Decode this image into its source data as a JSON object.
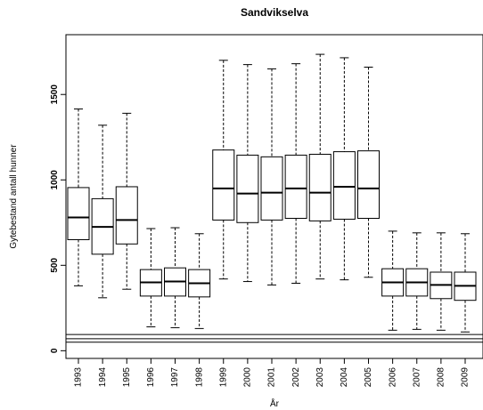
{
  "chart_data": {
    "type": "boxplot",
    "title": "Sandvikselva",
    "xlabel": "År",
    "ylabel": "Gytebestand antall hunner",
    "ylim": [
      -45,
      1850
    ],
    "yticks": [
      0,
      500,
      1000,
      1500
    ],
    "reference_lines": [
      50,
      70,
      95
    ],
    "grid": false,
    "categories": [
      "1993",
      "1994",
      "1995",
      "1996",
      "1997",
      "1998",
      "1999",
      "2000",
      "2001",
      "2002",
      "2003",
      "2004",
      "2005",
      "2006",
      "2007",
      "2008",
      "2009"
    ],
    "boxes": [
      {
        "min": 380,
        "q1": 650,
        "median": 780,
        "q3": 955,
        "max": 1415
      },
      {
        "min": 310,
        "q1": 565,
        "median": 725,
        "q3": 890,
        "max": 1320
      },
      {
        "min": 360,
        "q1": 625,
        "median": 765,
        "q3": 960,
        "max": 1390
      },
      {
        "min": 140,
        "q1": 320,
        "median": 400,
        "q3": 475,
        "max": 715
      },
      {
        "min": 135,
        "q1": 320,
        "median": 405,
        "q3": 485,
        "max": 720
      },
      {
        "min": 130,
        "q1": 315,
        "median": 395,
        "q3": 475,
        "max": 685
      },
      {
        "min": 420,
        "q1": 765,
        "median": 950,
        "q3": 1175,
        "max": 1700
      },
      {
        "min": 405,
        "q1": 750,
        "median": 920,
        "q3": 1145,
        "max": 1675
      },
      {
        "min": 385,
        "q1": 765,
        "median": 925,
        "q3": 1135,
        "max": 1650
      },
      {
        "min": 395,
        "q1": 775,
        "median": 950,
        "q3": 1145,
        "max": 1680
      },
      {
        "min": 420,
        "q1": 760,
        "median": 925,
        "q3": 1150,
        "max": 1735
      },
      {
        "min": 415,
        "q1": 770,
        "median": 960,
        "q3": 1165,
        "max": 1715
      },
      {
        "min": 430,
        "q1": 775,
        "median": 950,
        "q3": 1170,
        "max": 1660
      },
      {
        "min": 120,
        "q1": 320,
        "median": 400,
        "q3": 480,
        "max": 700
      },
      {
        "min": 125,
        "q1": 320,
        "median": 400,
        "q3": 480,
        "max": 690
      },
      {
        "min": 120,
        "q1": 305,
        "median": 385,
        "q3": 460,
        "max": 690
      },
      {
        "min": 110,
        "q1": 295,
        "median": 380,
        "q3": 460,
        "max": 685
      }
    ]
  }
}
